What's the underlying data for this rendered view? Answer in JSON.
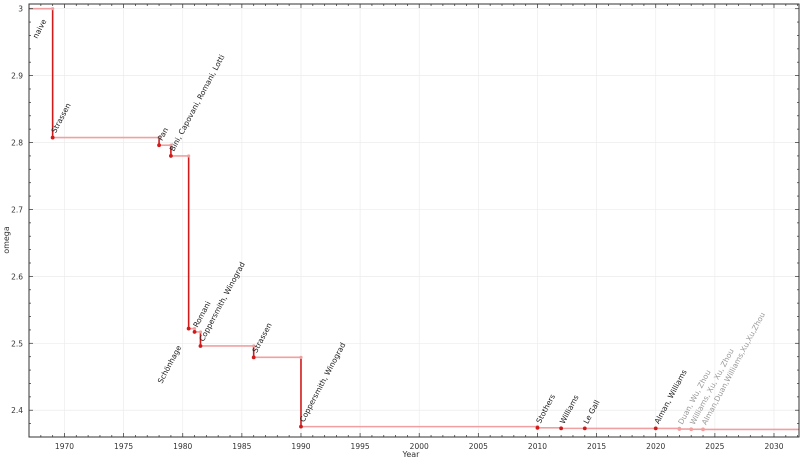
{
  "chart_data": {
    "type": "line",
    "step": true,
    "xlabel": "Year",
    "ylabel": "omega",
    "xlim": [
      1967,
      2032.2
    ],
    "ylim": [
      2.36,
      3.007
    ],
    "xticks": [
      1970,
      1975,
      1980,
      1985,
      1990,
      1995,
      2000,
      2005,
      2010,
      2015,
      2020,
      2025,
      2030
    ],
    "yticks": [
      2.4,
      2.5,
      2.6,
      2.7,
      2.8,
      2.9,
      3
    ],
    "ytick_labels": [
      "2.4",
      "2.5",
      "2.6",
      "2.7",
      "2.8",
      "2.9",
      "3"
    ],
    "grid": true,
    "colors": {
      "main": "#d11a1a",
      "light": "#f0a0a0",
      "label_dim": "#9a9a9a"
    },
    "points": [
      {
        "year": 1967,
        "omega": 3.0,
        "label": "naive",
        "dim": false
      },
      {
        "year": 1969,
        "omega": 2.8074,
        "label": "Strassen",
        "dim": false
      },
      {
        "year": 1978,
        "omega": 2.796,
        "label": "Pan",
        "dim": false
      },
      {
        "year": 1979,
        "omega": 2.78,
        "label": "Bini, Capovani, Romani, Lotti",
        "dim": false
      },
      {
        "year": 1980.5,
        "omega": 2.522,
        "label": "Schönhage",
        "dim": false
      },
      {
        "year": 1981,
        "omega": 2.517,
        "label": "Romani",
        "dim": false
      },
      {
        "year": 1981.5,
        "omega": 2.496,
        "label": "Coppersmith, Winograd",
        "dim": false
      },
      {
        "year": 1986,
        "omega": 2.479,
        "label": "Strassen",
        "dim": false
      },
      {
        "year": 1990,
        "omega": 2.3755,
        "label": "Coppersmith, Winograd",
        "dim": false
      },
      {
        "year": 2010,
        "omega": 2.3737,
        "label": "Stothers",
        "dim": false
      },
      {
        "year": 2012,
        "omega": 2.3729,
        "label": "Williams",
        "dim": false
      },
      {
        "year": 2014,
        "omega": 2.37286,
        "label": "Le Gall",
        "dim": false
      },
      {
        "year": 2020,
        "omega": 2.37286,
        "label": "Alman, Williams",
        "dim": false
      },
      {
        "year": 2022,
        "omega": 2.37188,
        "label": "Duan, Wu, Zhou",
        "dim": true
      },
      {
        "year": 2023,
        "omega": 2.37155,
        "label": "Williams, Xu, Xu, Zhou",
        "dim": true
      },
      {
        "year": 2024,
        "omega": 2.37134,
        "label": "Alman,Duan,Williams,Xu,Xu,Zhou",
        "dim": true
      }
    ]
  }
}
